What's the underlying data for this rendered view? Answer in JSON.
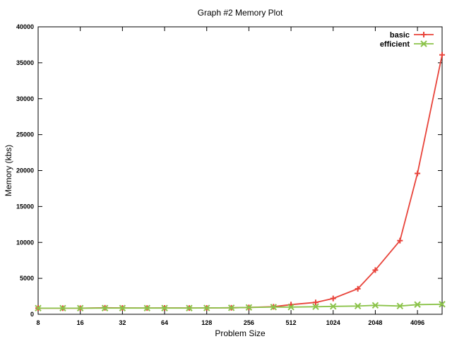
{
  "chart_data": {
    "type": "line",
    "title": "Graph #2 Memory Plot",
    "xlabel": "Problem Size",
    "ylabel": "Memory (kbs)",
    "x_scale": "log2",
    "xlim": [
      8,
      6144
    ],
    "ylim": [
      0,
      40000
    ],
    "grid": false,
    "legend_position": "top-right",
    "x_ticks": [
      "8",
      "16",
      "32",
      "64",
      "128",
      "256",
      "512",
      "1024",
      "2048",
      "4096"
    ],
    "y_ticks": [
      "0",
      "5000",
      "10000",
      "15000",
      "20000",
      "25000",
      "30000",
      "35000",
      "40000"
    ],
    "x": [
      8,
      12,
      16,
      24,
      32,
      48,
      64,
      96,
      128,
      192,
      256,
      384,
      512,
      768,
      1024,
      1536,
      2048,
      3072,
      4096,
      6144
    ],
    "series": [
      {
        "name": "basic",
        "color": "#e8433a",
        "marker": "plus",
        "values": [
          850,
          850,
          850,
          900,
          880,
          870,
          880,
          870,
          880,
          900,
          950,
          1050,
          1350,
          1650,
          2200,
          3550,
          6150,
          10250,
          19600,
          36100
        ]
      },
      {
        "name": "efficient",
        "color": "#8bc34a",
        "marker": "cross",
        "values": [
          850,
          850,
          850,
          860,
          860,
          860,
          860,
          860,
          880,
          900,
          950,
          1000,
          1000,
          1050,
          1100,
          1150,
          1250,
          1150,
          1350,
          1400
        ]
      }
    ]
  }
}
